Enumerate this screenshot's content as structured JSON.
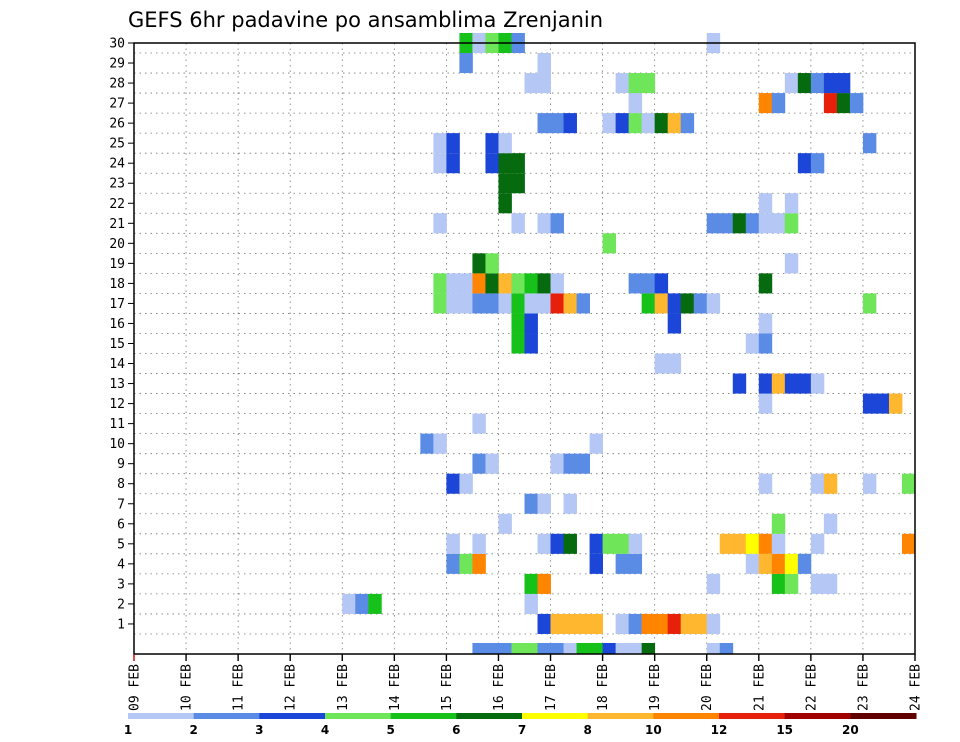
{
  "chart_data": {
    "type": "heatmap",
    "title": "GEFS 6hr padavine po ansamblima Zrenjanin",
    "x_ticks": [
      "09 FEB",
      "10 FEB",
      "11 FEB",
      "12 FEB",
      "13 FEB",
      "14 FEB",
      "15 FEB",
      "16 FEB",
      "17 FEB",
      "18 FEB",
      "19 FEB",
      "20 FEB",
      "21 FEB",
      "22 FEB",
      "23 FEB",
      "24 FEB"
    ],
    "y_ticks": [
      "1",
      "2",
      "3",
      "4",
      "5",
      "6",
      "7",
      "8",
      "9",
      "10",
      "11",
      "12",
      "13",
      "14",
      "15",
      "16",
      "17",
      "18",
      "19",
      "20",
      "21",
      "22",
      "23",
      "24",
      "25",
      "26",
      "27",
      "28",
      "29",
      "30"
    ],
    "time_steps_per_day": 4,
    "x_range_days": [
      0,
      15
    ],
    "y_range": [
      0,
      30
    ],
    "grid": true,
    "colorbar": {
      "labels": [
        "1",
        "2",
        "3",
        "4",
        "5",
        "6",
        "7",
        "8",
        "10",
        "12",
        "15",
        "20"
      ],
      "colors": [
        "#b4c7f5",
        "#5a8ce6",
        "#1c46d8",
        "#6fe65a",
        "#16c21a",
        "#066a0e",
        "#ffff00",
        "#ffb730",
        "#ff8500",
        "#e6200a",
        "#a00000",
        "#600000"
      ]
    },
    "cells": [
      [
        0,
        26,
        1
      ],
      [
        0,
        27,
        1
      ],
      [
        0,
        28,
        1
      ],
      [
        0,
        29,
        3
      ],
      [
        0,
        30,
        3
      ],
      [
        0,
        31,
        1
      ],
      [
        0,
        32,
        1
      ],
      [
        0,
        33,
        0
      ],
      [
        0,
        34,
        4
      ],
      [
        0,
        35,
        4
      ],
      [
        0,
        36,
        2
      ],
      [
        0,
        37,
        0
      ],
      [
        0,
        38,
        0
      ],
      [
        0,
        39,
        5
      ],
      [
        0,
        44,
        0
      ],
      [
        0,
        45,
        1
      ],
      [
        1,
        31,
        2
      ],
      [
        1,
        32,
        7
      ],
      [
        1,
        33,
        7
      ],
      [
        1,
        34,
        7
      ],
      [
        1,
        35,
        7
      ],
      [
        1,
        37,
        0
      ],
      [
        1,
        38,
        1
      ],
      [
        1,
        39,
        8
      ],
      [
        1,
        40,
        8
      ],
      [
        1,
        41,
        9
      ],
      [
        1,
        42,
        7
      ],
      [
        1,
        43,
        7
      ],
      [
        1,
        44,
        0
      ],
      [
        2,
        16,
        0
      ],
      [
        2,
        17,
        1
      ],
      [
        2,
        18,
        4
      ],
      [
        2,
        30,
        0
      ],
      [
        3,
        30,
        4
      ],
      [
        3,
        31,
        8
      ],
      [
        3,
        44,
        0
      ],
      [
        3,
        49,
        4
      ],
      [
        3,
        50,
        3
      ],
      [
        3,
        52,
        0
      ],
      [
        3,
        53,
        0
      ],
      [
        4,
        24,
        1
      ],
      [
        4,
        25,
        3
      ],
      [
        4,
        26,
        8
      ],
      [
        4,
        35,
        2
      ],
      [
        4,
        37,
        1
      ],
      [
        4,
        38,
        1
      ],
      [
        4,
        47,
        0
      ],
      [
        4,
        48,
        7
      ],
      [
        4,
        49,
        8
      ],
      [
        4,
        50,
        6
      ],
      [
        4,
        51,
        1
      ],
      [
        5,
        24,
        0
      ],
      [
        5,
        26,
        0
      ],
      [
        5,
        31,
        0
      ],
      [
        5,
        32,
        2
      ],
      [
        5,
        33,
        5
      ],
      [
        5,
        35,
        2
      ],
      [
        5,
        36,
        3
      ],
      [
        5,
        37,
        3
      ],
      [
        5,
        38,
        0
      ],
      [
        5,
        45,
        7
      ],
      [
        5,
        46,
        7
      ],
      [
        5,
        47,
        6
      ],
      [
        5,
        48,
        8
      ],
      [
        5,
        49,
        0
      ],
      [
        5,
        52,
        0
      ],
      [
        5,
        59,
        8
      ],
      [
        6,
        28,
        0
      ],
      [
        6,
        49,
        3
      ],
      [
        6,
        53,
        0
      ],
      [
        7,
        30,
        1
      ],
      [
        7,
        31,
        0
      ],
      [
        7,
        33,
        0
      ],
      [
        8,
        24,
        2
      ],
      [
        8,
        25,
        0
      ],
      [
        8,
        48,
        0
      ],
      [
        8,
        52,
        0
      ],
      [
        8,
        53,
        7
      ],
      [
        8,
        56,
        0
      ],
      [
        8,
        59,
        3
      ],
      [
        9,
        26,
        1
      ],
      [
        9,
        27,
        0
      ],
      [
        9,
        32,
        0
      ],
      [
        9,
        33,
        1
      ],
      [
        9,
        34,
        1
      ],
      [
        10,
        22,
        1
      ],
      [
        10,
        23,
        0
      ],
      [
        10,
        35,
        0
      ],
      [
        11,
        26,
        0
      ],
      [
        12,
        48,
        0
      ],
      [
        12,
        56,
        2
      ],
      [
        12,
        57,
        2
      ],
      [
        12,
        58,
        7
      ],
      [
        13,
        46,
        2
      ],
      [
        13,
        48,
        2
      ],
      [
        13,
        49,
        7
      ],
      [
        13,
        50,
        2
      ],
      [
        13,
        51,
        2
      ],
      [
        13,
        52,
        0
      ],
      [
        14,
        40,
        0
      ],
      [
        14,
        41,
        0
      ],
      [
        15,
        29,
        4
      ],
      [
        15,
        30,
        2
      ],
      [
        15,
        47,
        0
      ],
      [
        15,
        48,
        1
      ],
      [
        16,
        29,
        4
      ],
      [
        16,
        30,
        2
      ],
      [
        16,
        41,
        2
      ],
      [
        16,
        48,
        0
      ],
      [
        17,
        23,
        3
      ],
      [
        17,
        24,
        0
      ],
      [
        17,
        25,
        0
      ],
      [
        17,
        26,
        1
      ],
      [
        17,
        27,
        1
      ],
      [
        17,
        28,
        0
      ],
      [
        17,
        29,
        4
      ],
      [
        17,
        30,
        0
      ],
      [
        17,
        31,
        0
      ],
      [
        17,
        32,
        9
      ],
      [
        17,
        33,
        7
      ],
      [
        17,
        34,
        1
      ],
      [
        17,
        39,
        4
      ],
      [
        17,
        40,
        7
      ],
      [
        17,
        41,
        2
      ],
      [
        17,
        42,
        5
      ],
      [
        17,
        43,
        1
      ],
      [
        17,
        44,
        0
      ],
      [
        17,
        56,
        3
      ],
      [
        18,
        23,
        3
      ],
      [
        18,
        24,
        0
      ],
      [
        18,
        25,
        0
      ],
      [
        18,
        26,
        8
      ],
      [
        18,
        27,
        5
      ],
      [
        18,
        28,
        7
      ],
      [
        18,
        29,
        3
      ],
      [
        18,
        30,
        4
      ],
      [
        18,
        31,
        5
      ],
      [
        18,
        32,
        0
      ],
      [
        18,
        38,
        1
      ],
      [
        18,
        39,
        1
      ],
      [
        18,
        40,
        2
      ],
      [
        18,
        48,
        5
      ],
      [
        19,
        26,
        5
      ],
      [
        19,
        27,
        3
      ],
      [
        19,
        50,
        0
      ],
      [
        20,
        36,
        3
      ],
      [
        21,
        23,
        0
      ],
      [
        21,
        29,
        0
      ],
      [
        21,
        31,
        0
      ],
      [
        21,
        32,
        1
      ],
      [
        21,
        44,
        1
      ],
      [
        21,
        45,
        1
      ],
      [
        21,
        46,
        5
      ],
      [
        21,
        47,
        1
      ],
      [
        21,
        48,
        0
      ],
      [
        21,
        49,
        0
      ],
      [
        21,
        50,
        3
      ],
      [
        22,
        28,
        5
      ],
      [
        22,
        48,
        0
      ],
      [
        22,
        50,
        0
      ],
      [
        23,
        28,
        5
      ],
      [
        23,
        29,
        5
      ],
      [
        24,
        23,
        0
      ],
      [
        24,
        24,
        2
      ],
      [
        24,
        27,
        2
      ],
      [
        24,
        28,
        5
      ],
      [
        24,
        29,
        5
      ],
      [
        24,
        51,
        2
      ],
      [
        24,
        52,
        1
      ],
      [
        25,
        23,
        0
      ],
      [
        25,
        24,
        2
      ],
      [
        25,
        27,
        2
      ],
      [
        25,
        28,
        0
      ],
      [
        25,
        56,
        1
      ],
      [
        26,
        31,
        1
      ],
      [
        26,
        32,
        1
      ],
      [
        26,
        33,
        2
      ],
      [
        26,
        36,
        0
      ],
      [
        26,
        37,
        2
      ],
      [
        26,
        38,
        3
      ],
      [
        26,
        39,
        0
      ],
      [
        26,
        40,
        5
      ],
      [
        26,
        41,
        7
      ],
      [
        26,
        42,
        1
      ],
      [
        27,
        38,
        0
      ],
      [
        27,
        48,
        8
      ],
      [
        27,
        49,
        1
      ],
      [
        27,
        53,
        9
      ],
      [
        27,
        54,
        5
      ],
      [
        27,
        55,
        1
      ],
      [
        28,
        30,
        0
      ],
      [
        28,
        31,
        0
      ],
      [
        28,
        37,
        0
      ],
      [
        28,
        38,
        3
      ],
      [
        28,
        39,
        3
      ],
      [
        28,
        50,
        0
      ],
      [
        28,
        51,
        5
      ],
      [
        28,
        52,
        1
      ],
      [
        28,
        53,
        2
      ],
      [
        28,
        54,
        2
      ],
      [
        29,
        25,
        1
      ],
      [
        29,
        31,
        0
      ],
      [
        30,
        25,
        4
      ],
      [
        30,
        26,
        0
      ],
      [
        30,
        27,
        3
      ],
      [
        30,
        28,
        4
      ],
      [
        30,
        29,
        1
      ],
      [
        30,
        44,
        0
      ]
    ]
  }
}
